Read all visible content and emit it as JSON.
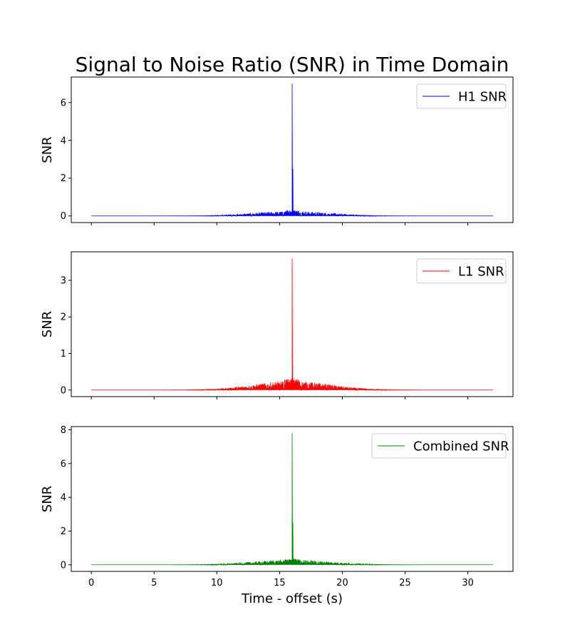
{
  "title": "Signal to Noise Ratio (SNR) in Time Domain",
  "chart_data": [
    {
      "type": "line",
      "series": [
        {
          "name": "H1 SNR",
          "color": "#0000ff",
          "peak_x": 16.0,
          "peak_y": 7.0,
          "secondary_peak_y": 2.5,
          "background_max": 0.25
        }
      ],
      "x_ticks": [
        0,
        5,
        10,
        15,
        20,
        25,
        30
      ],
      "y_ticks": [
        0,
        2,
        4,
        6
      ],
      "xlim": [
        -1.6,
        33.6
      ],
      "ylim": [
        -0.35,
        7.35
      ],
      "x_range": [
        0,
        32
      ],
      "ylabel": "SNR",
      "xlabel": "",
      "grid": false,
      "legend_position": "top-right"
    },
    {
      "type": "line",
      "series": [
        {
          "name": "L1 SNR",
          "color": "#ff0000",
          "peak_x": 16.0,
          "peak_y": 3.6,
          "secondary_peak_y": 0.35,
          "background_max": 0.25
        }
      ],
      "x_ticks": [
        0,
        5,
        10,
        15,
        20,
        25,
        30
      ],
      "y_ticks": [
        0,
        1,
        2,
        3
      ],
      "xlim": [
        -1.6,
        33.6
      ],
      "ylim": [
        -0.18,
        3.78
      ],
      "x_range": [
        0,
        32
      ],
      "ylabel": "SNR",
      "xlabel": "",
      "grid": false,
      "legend_position": "top-right"
    },
    {
      "type": "line",
      "series": [
        {
          "name": "Combined SNR",
          "color": "#008000",
          "peak_x": 16.0,
          "peak_y": 7.8,
          "secondary_peak_y": 2.5,
          "background_max": 0.3
        }
      ],
      "x_ticks": [
        0,
        5,
        10,
        15,
        20,
        25,
        30
      ],
      "y_ticks": [
        0,
        2,
        4,
        6,
        8
      ],
      "xlim": [
        -1.6,
        33.6
      ],
      "ylim": [
        -0.39,
        8.19
      ],
      "x_range": [
        0,
        32
      ],
      "ylabel": "SNR",
      "xlabel": "Time - offset (s)",
      "grid": false,
      "legend_position": "top-right"
    }
  ]
}
